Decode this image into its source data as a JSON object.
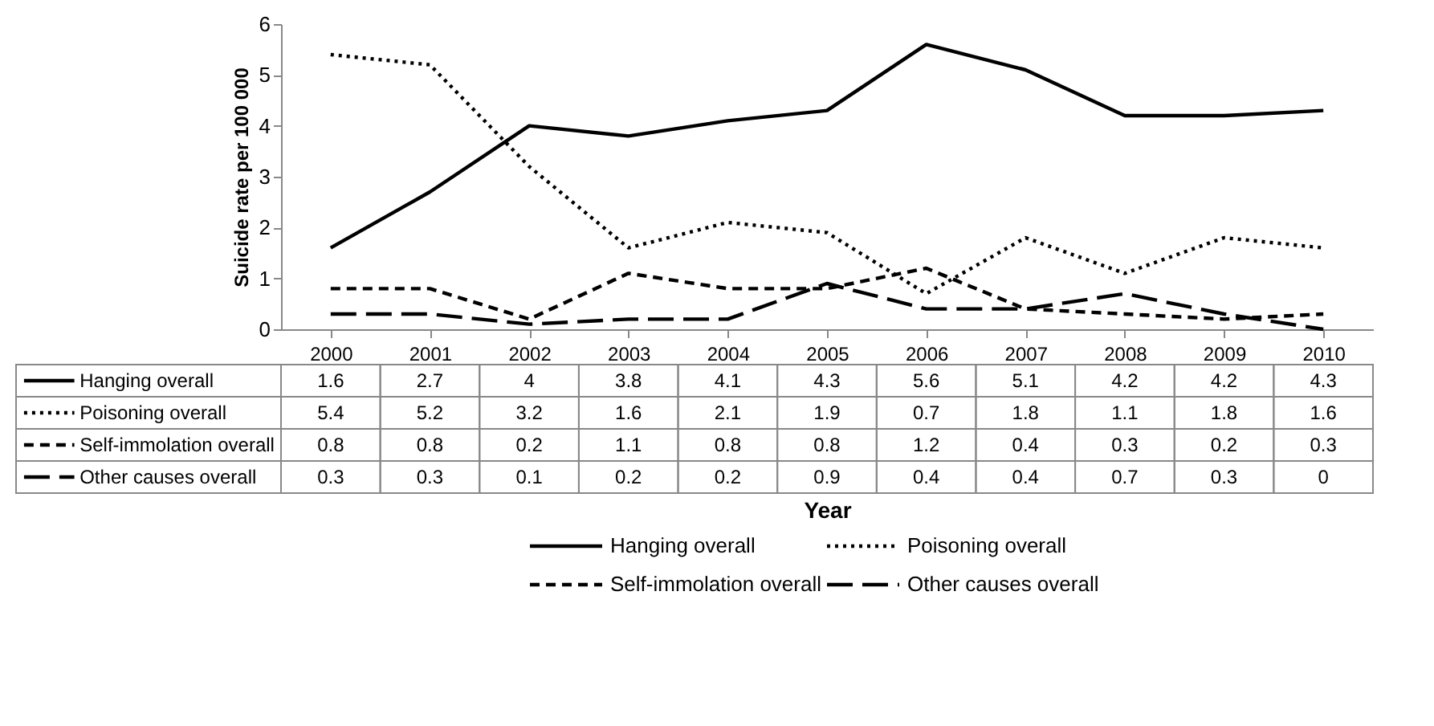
{
  "chart_data": {
    "type": "line",
    "annotations": [
      "Year"
    ],
    "ylabel": "Suicide rate per 100 000",
    "categories": [
      "2000",
      "2001",
      "2002",
      "2003",
      "2004",
      "2005",
      "2006",
      "2007",
      "2008",
      "2009",
      "2010"
    ],
    "series": [
      {
        "name": "Hanging overall",
        "color": "#000000",
        "line_style": "solid",
        "values": [
          1.6,
          2.7,
          4,
          3.8,
          4.1,
          4.3,
          5.6,
          5.1,
          4.2,
          4.2,
          4.3
        ]
      },
      {
        "name": "Poisoning overall",
        "color": "#000000",
        "line_style": "dotted",
        "values": [
          5.4,
          5.2,
          3.2,
          1.6,
          2.1,
          1.9,
          0.7,
          1.8,
          1.1,
          1.8,
          1.6
        ]
      },
      {
        "name": "Self-immolation overall",
        "color": "#000000",
        "line_style": "dashed",
        "values": [
          0.8,
          0.8,
          0.2,
          1.1,
          0.8,
          0.8,
          1.2,
          0.4,
          0.3,
          0.2,
          0.3
        ]
      },
      {
        "name": "Other causes overall",
        "color": "#000000",
        "line_style": "dashed",
        "values": [
          0.3,
          0.3,
          0.1,
          0.2,
          0.2,
          0.9,
          0.4,
          0.4,
          0.7,
          0.3,
          0
        ]
      }
    ],
    "ylim": [
      0,
      6
    ],
    "yticks": [
      0,
      1,
      2,
      3,
      4,
      5,
      6
    ],
    "grid": false,
    "legend": "bottom",
    "data_labels": true
  }
}
